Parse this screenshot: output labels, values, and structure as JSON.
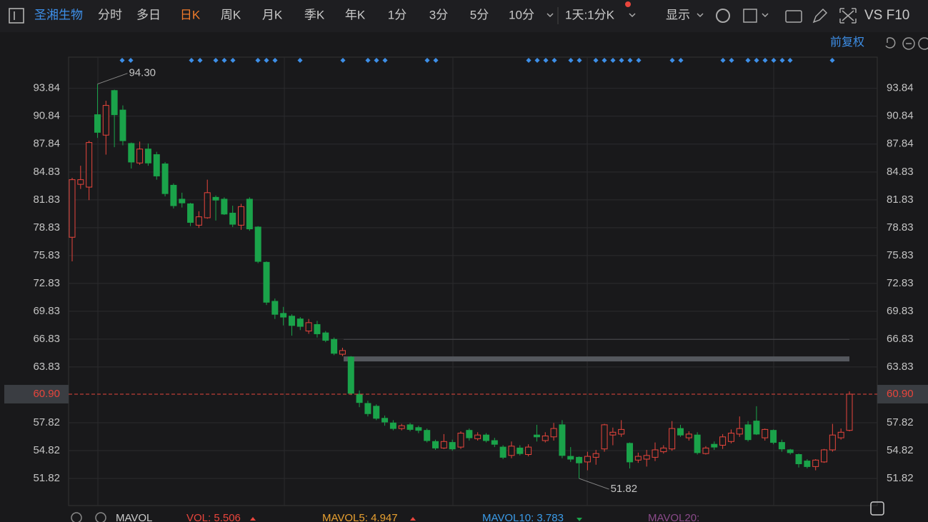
{
  "toolbar": {
    "stock": "圣湘生物",
    "tabs": [
      "分时",
      "多日",
      "日K",
      "周K",
      "月K",
      "季K",
      "年K",
      "1分",
      "3分",
      "5分",
      "10分"
    ],
    "active_tab": 2,
    "period": "1天:1分K",
    "display": "显示",
    "right": "VS F10",
    "adjust": "前复权"
  },
  "indicator_bar": {
    "name": "MAVOL",
    "items": [
      "VOL: 5.506",
      "MAVOL5: 4.947",
      "MAVOL10: 3.783",
      "MAVOL20:"
    ]
  },
  "chart_data": {
    "type": "candlestick",
    "up_color": "#e8453c",
    "down_color": "#1aa34a",
    "ylim": [
      48.9,
      97.2
    ],
    "yticks": [
      51.82,
      54.82,
      57.82,
      {
        "value": 63.83,
        "label": "63.83"
      },
      66.83,
      69.83,
      72.83,
      75.83,
      78.83,
      81.83,
      84.83,
      87.84,
      90.84,
      93.84
    ],
    "grid": true,
    "last_price": {
      "value": 60.9,
      "label": "60.90"
    },
    "max_label": "94.30",
    "min_label": "51.82",
    "hlines": [
      64.7,
      66.8
    ],
    "open": [
      77.8,
      83.5,
      83.2,
      91.0,
      88.8,
      93.6,
      91.5,
      87.9,
      85.8,
      87.3,
      86.7,
      85.7,
      83.4,
      81.9,
      81.4,
      79.1,
      79.9,
      82.1,
      81.9,
      80.4,
      79.1,
      81.9,
      78.9,
      75.1,
      70.9,
      69.6,
      69.3,
      69.0,
      67.7,
      68.4,
      67.5,
      66.8,
      65.2,
      64.9,
      60.9,
      59.9,
      59.6,
      58.3,
      57.8,
      57.2,
      57.6,
      57.3,
      57.0,
      55.8,
      55.1,
      55.7,
      55.2,
      57.0,
      56.1,
      56.5,
      55.9,
      55.2,
      54.3,
      55.1,
      54.4,
      56.5,
      55.9,
      56.3,
      57.6,
      54.2,
      54.1,
      53.6,
      54.1,
      55.0,
      56.5,
      56.6,
      55.6,
      53.8,
      53.9,
      54.1,
      54.7,
      55.0,
      57.2,
      56.2,
      56.5,
      54.5,
      55.5,
      55.4,
      55.8,
      56.6,
      57.6,
      58.0,
      56.2,
      57.0,
      55.7,
      54.9,
      54.4,
      53.7,
      53.1,
      53.6,
      54.9,
      56.2,
      57.0
    ],
    "high": [
      84.2,
      85.5,
      88.2,
      94.3,
      92.5,
      93.7,
      92.0,
      88.0,
      88.1,
      87.9,
      87.0,
      85.9,
      83.6,
      82.6,
      81.5,
      80.6,
      84.0,
      82.3,
      82.1,
      81.2,
      81.4,
      82.1,
      79.0,
      75.2,
      71.2,
      70.3,
      69.5,
      69.2,
      69.0,
      68.8,
      67.7,
      67.0,
      65.9,
      65.0,
      61.3,
      60.2,
      59.8,
      58.6,
      58.1,
      57.7,
      57.8,
      57.5,
      57.2,
      56.0,
      56.6,
      56.0,
      56.9,
      57.2,
      56.8,
      56.7,
      56.2,
      55.4,
      55.8,
      55.4,
      55.5,
      57.6,
      56.8,
      57.8,
      58.1,
      55.2,
      54.2,
      54.7,
      54.9,
      57.7,
      57.3,
      58.1,
      55.7,
      54.6,
      54.9,
      55.7,
      55.4,
      58.0,
      57.6,
      56.9,
      56.8,
      55.3,
      55.8,
      56.6,
      57.1,
      58.5,
      58.0,
      59.6,
      57.2,
      57.1,
      56.0,
      55.0,
      54.5,
      53.9,
      53.9,
      55.0,
      57.7,
      57.2,
      61.2
    ],
    "low": [
      75.2,
      83.0,
      81.8,
      88.5,
      86.7,
      87.5,
      87.7,
      85.2,
      85.6,
      85.5,
      84.0,
      82.2,
      80.9,
      81.0,
      79.0,
      78.8,
      79.8,
      79.6,
      80.2,
      78.9,
      78.6,
      78.5,
      75.0,
      70.5,
      69.0,
      68.3,
      67.2,
      67.8,
      67.4,
      67.0,
      66.5,
      65.1,
      65.0,
      60.8,
      59.5,
      58.5,
      58.1,
      57.5,
      57.0,
      57.0,
      56.9,
      56.7,
      55.7,
      54.9,
      55.0,
      54.8,
      55.0,
      55.9,
      55.9,
      55.7,
      55.2,
      53.9,
      54.0,
      54.3,
      54.2,
      55.8,
      55.7,
      55.9,
      54.0,
      53.6,
      51.82,
      52.7,
      53.3,
      54.7,
      55.4,
      56.3,
      52.9,
      53.5,
      53.1,
      53.7,
      54.5,
      54.8,
      56.3,
      55.9,
      54.4,
      54.4,
      54.9,
      55.0,
      55.6,
      56.3,
      55.8,
      56.5,
      55.9,
      55.5,
      54.7,
      54.4,
      53.0,
      52.9,
      52.7,
      53.5,
      54.7,
      56.0,
      56.9
    ],
    "close": [
      84.0,
      84.0,
      88.0,
      89.1,
      92.0,
      91.0,
      88.2,
      85.9,
      87.3,
      85.8,
      84.4,
      82.5,
      81.2,
      81.5,
      79.4,
      80.0,
      82.6,
      81.8,
      80.3,
      79.2,
      81.1,
      78.7,
      75.2,
      70.8,
      69.5,
      69.2,
      68.3,
      68.2,
      68.6,
      67.4,
      66.7,
      65.3,
      65.6,
      61.0,
      60.0,
      58.8,
      58.3,
      57.9,
      57.2,
      57.5,
      57.1,
      57.0,
      55.9,
      55.1,
      55.8,
      55.0,
      56.7,
      56.2,
      56.5,
      55.9,
      55.5,
      54.1,
      55.3,
      54.5,
      55.2,
      56.3,
      56.4,
      57.2,
      54.3,
      53.9,
      53.5,
      54.2,
      54.5,
      57.6,
      56.8,
      57.1,
      53.6,
      54.2,
      54.3,
      54.9,
      55.1,
      57.2,
      56.5,
      56.6,
      54.6,
      55.1,
      55.2,
      56.3,
      56.7,
      57.2,
      56.0,
      56.6,
      57.1,
      55.7,
      55.0,
      54.6,
      53.4,
      53.1,
      53.8,
      54.9,
      56.5,
      56.8,
      60.9
    ]
  }
}
